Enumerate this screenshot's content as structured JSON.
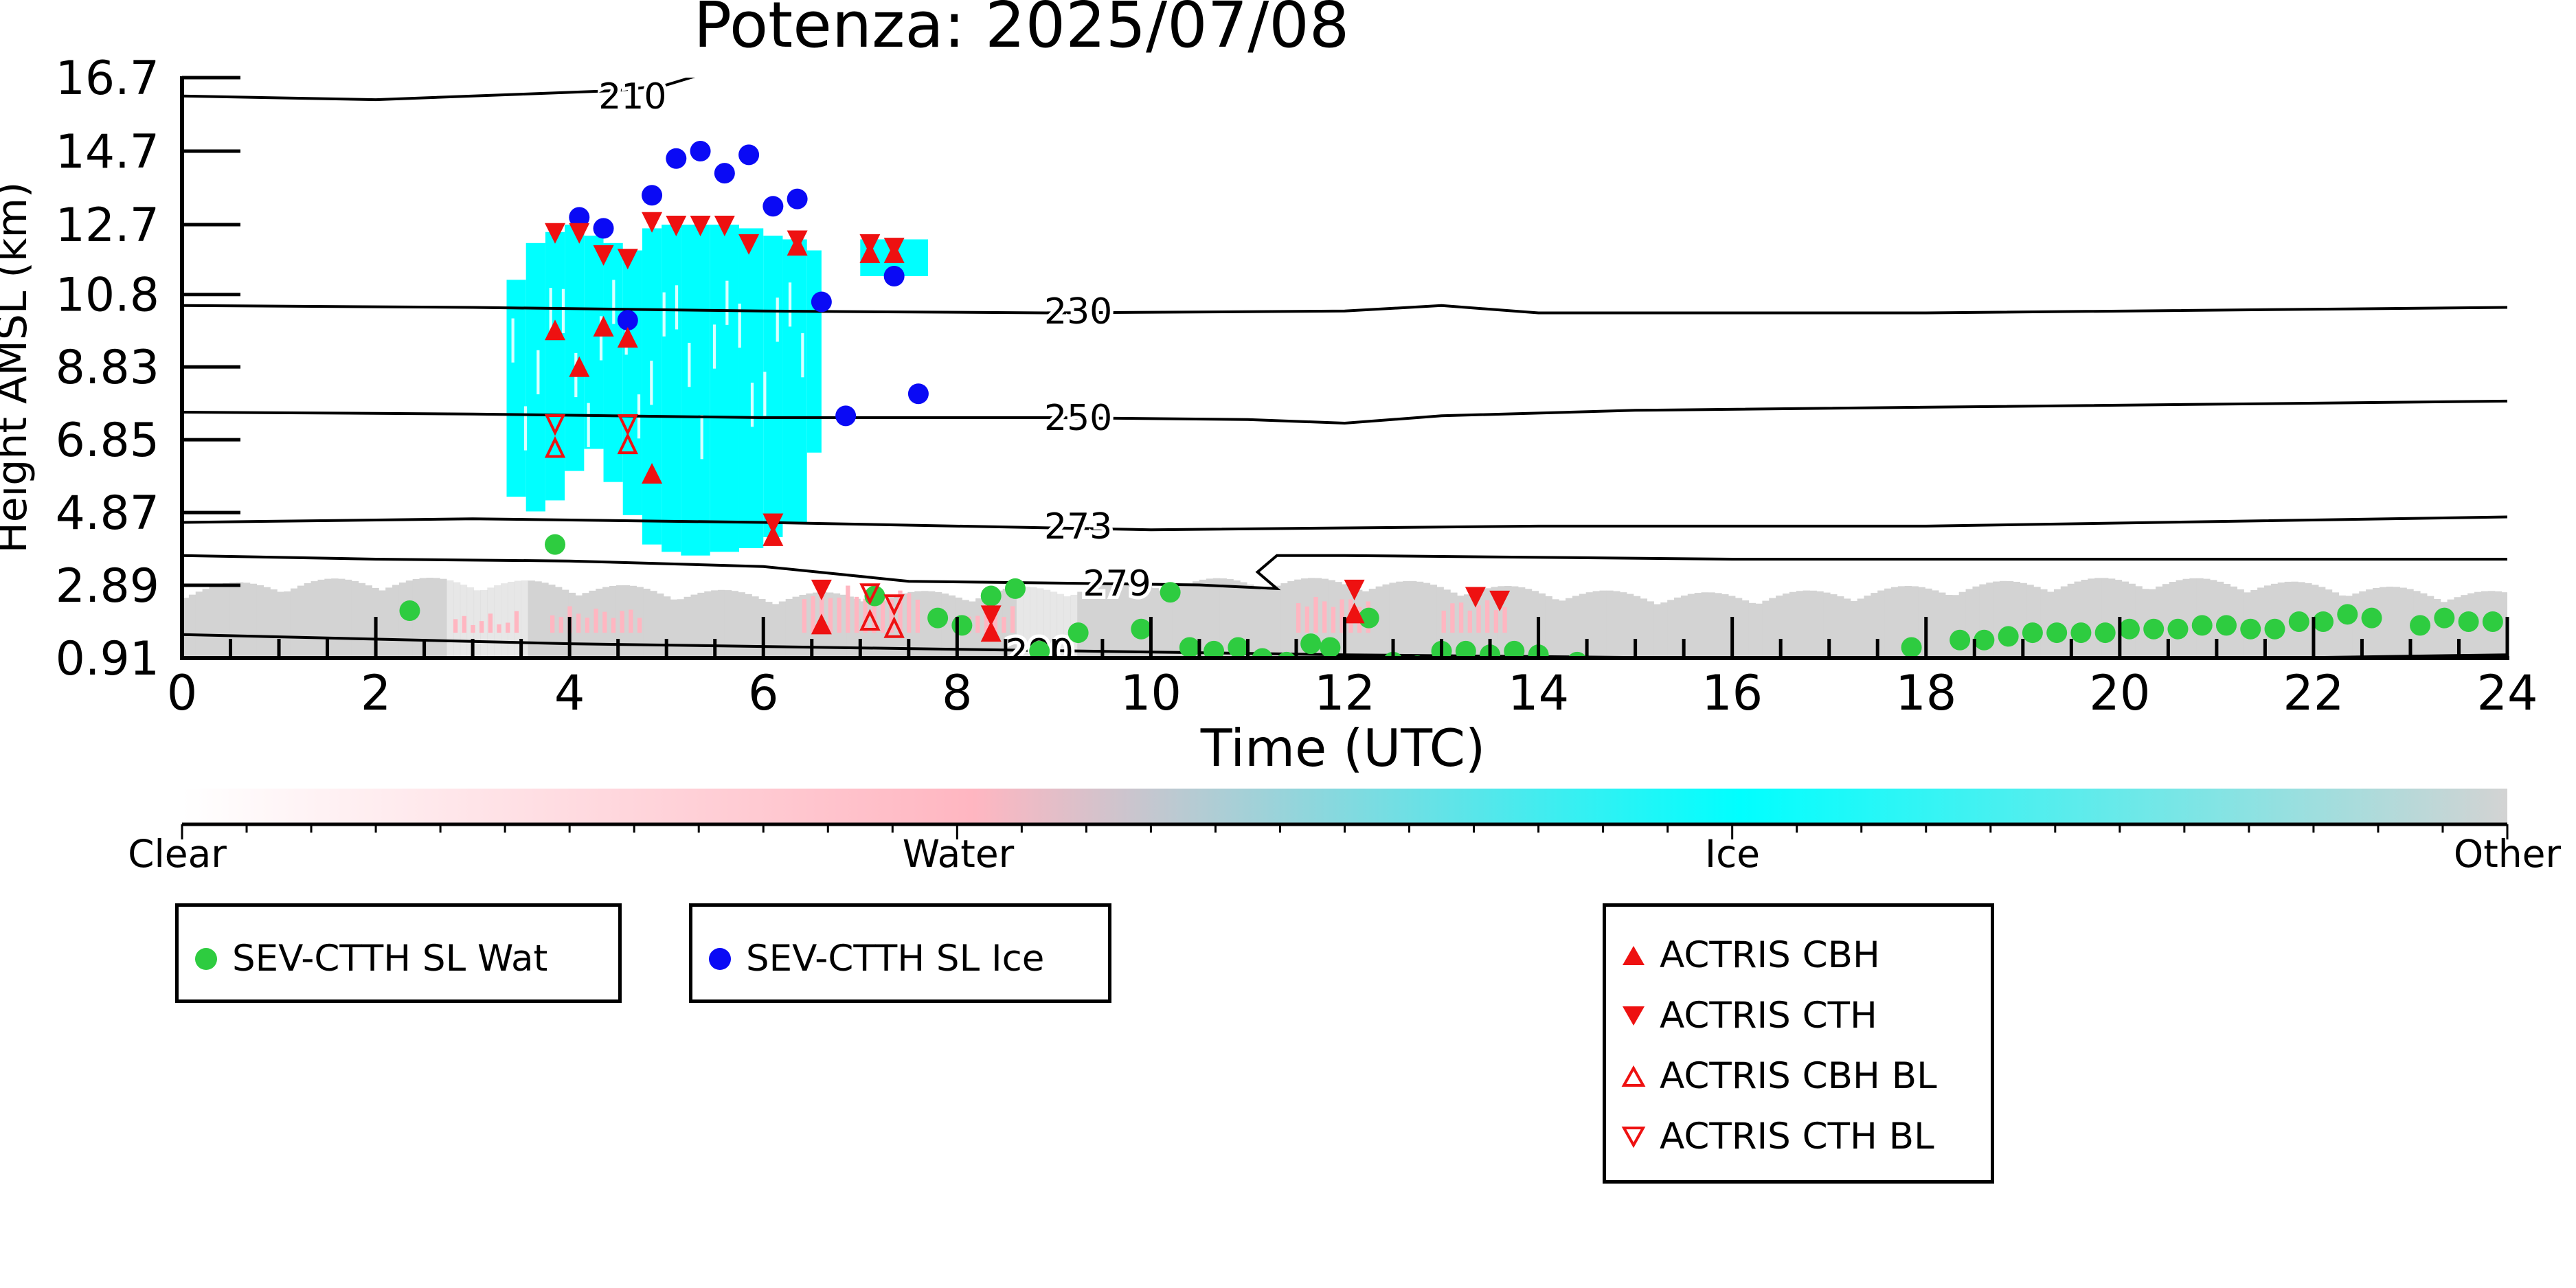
{
  "chart_data": {
    "type": "scatter",
    "title": "Potenza: 2025/07/08",
    "xlabel": "Time (UTC)",
    "ylabel": "Height AMSL (km)",
    "xlim": [
      0,
      24
    ],
    "ylim": [
      0.91,
      16.7
    ],
    "x_ticks": [
      "0",
      "2",
      "4",
      "6",
      "8",
      "10",
      "12",
      "14",
      "16",
      "18",
      "20",
      "22",
      "24"
    ],
    "y_ticks": [
      "0.91",
      "2.89",
      "4.87",
      "6.85",
      "8.83",
      "10.8",
      "12.7",
      "14.7",
      "16.7"
    ],
    "colorbar": {
      "labels": [
        "Clear",
        "Water",
        "Ice",
        "Other"
      ],
      "colors": [
        "#ffffff",
        "#ffb6c1",
        "#00ffff",
        "#d3d3d3"
      ]
    },
    "contours": [
      {
        "label": "210",
        "points": [
          [
            0,
            16.2
          ],
          [
            2,
            16.1
          ],
          [
            3.5,
            16.25
          ],
          [
            4.5,
            16.35
          ],
          [
            5,
            16.5
          ],
          [
            5.5,
            16.9
          ]
        ]
      },
      {
        "label": "230",
        "points": [
          [
            0,
            10.5
          ],
          [
            3,
            10.45
          ],
          [
            6,
            10.35
          ],
          [
            9,
            10.3
          ],
          [
            12,
            10.35
          ],
          [
            13,
            10.5
          ],
          [
            14,
            10.3
          ],
          [
            18,
            10.3
          ],
          [
            24,
            10.45
          ]
        ]
      },
      {
        "label": "250",
        "points": [
          [
            0,
            7.6
          ],
          [
            3,
            7.55
          ],
          [
            6,
            7.45
          ],
          [
            9,
            7.45
          ],
          [
            11,
            7.4
          ],
          [
            12,
            7.3
          ],
          [
            13,
            7.5
          ],
          [
            15,
            7.65
          ],
          [
            24,
            7.9
          ]
        ]
      },
      {
        "label": "273",
        "points": [
          [
            0,
            4.6
          ],
          [
            3,
            4.7
          ],
          [
            6,
            4.6
          ],
          [
            10,
            4.4
          ],
          [
            14,
            4.5
          ],
          [
            18,
            4.5
          ],
          [
            24,
            4.75
          ]
        ]
      },
      {
        "label": "279",
        "points": [
          [
            0,
            3.7
          ],
          [
            2,
            3.6
          ],
          [
            4,
            3.55
          ],
          [
            6,
            3.4
          ],
          [
            7.5,
            3.0
          ],
          [
            9,
            2.95
          ],
          [
            10.5,
            2.9
          ],
          [
            11.3,
            2.8
          ],
          [
            11.1,
            3.25
          ],
          [
            11.3,
            3.7
          ],
          [
            12,
            3.7
          ],
          [
            16,
            3.6
          ],
          [
            24,
            3.6
          ]
        ]
      },
      {
        "label": "290",
        "points": [
          [
            0,
            1.55
          ],
          [
            4,
            1.3
          ],
          [
            8,
            1.15
          ],
          [
            12,
            1.0
          ],
          [
            16,
            0.9
          ],
          [
            18,
            0.8
          ],
          [
            20,
            0.85
          ],
          [
            24,
            1.0
          ]
        ]
      }
    ],
    "series": [
      {
        "name": "SEV-CTTH SL Wat",
        "color": "#2ecc40",
        "marker": "circle",
        "x": [
          2.35,
          3.85,
          7.15,
          7.8,
          8.05,
          8.35,
          8.6,
          8.85,
          9.25,
          9.9,
          10.2,
          10.4,
          10.65,
          10.9,
          11.15,
          11.4,
          11.65,
          11.85,
          12.25,
          12.5,
          12.75,
          13.0,
          13.25,
          13.5,
          13.75,
          14.0,
          14.4,
          17.85,
          18.35,
          18.6,
          18.85,
          19.1,
          19.35,
          19.6,
          19.85,
          20.1,
          20.35,
          20.6,
          20.85,
          21.1,
          21.35,
          21.6,
          21.85,
          22.1,
          22.35,
          22.6,
          23.1,
          23.35,
          23.6,
          23.85
        ],
        "y": [
          2.2,
          4.0,
          2.6,
          2.0,
          1.8,
          2.6,
          2.8,
          1.1,
          1.6,
          1.7,
          2.7,
          1.2,
          1.1,
          1.2,
          0.9,
          0.8,
          1.3,
          1.2,
          2.0,
          0.8,
          0.7,
          1.1,
          1.1,
          1.0,
          1.1,
          1.0,
          0.8,
          1.2,
          1.4,
          1.4,
          1.5,
          1.6,
          1.6,
          1.6,
          1.6,
          1.7,
          1.7,
          1.7,
          1.8,
          1.8,
          1.7,
          1.7,
          1.9,
          1.9,
          2.1,
          2.0,
          1.8,
          2.0,
          1.9,
          1.9
        ]
      },
      {
        "name": "SEV-CTTH SL Ice",
        "color": "#0a0af5",
        "marker": "circle",
        "x": [
          4.1,
          4.35,
          4.6,
          4.85,
          5.1,
          5.35,
          5.6,
          5.85,
          6.1,
          6.35,
          6.6,
          6.85,
          7.35,
          7.6
        ],
        "y": [
          12.9,
          12.6,
          10.1,
          13.5,
          14.5,
          14.7,
          14.1,
          14.6,
          13.2,
          13.4,
          10.6,
          7.5,
          11.3,
          8.1
        ]
      },
      {
        "name": "ACTRIS CBH",
        "color": "#ee1111",
        "marker": "triangle-up",
        "x": [
          3.85,
          4.1,
          4.35,
          4.6,
          4.85,
          6.1,
          6.35,
          6.6,
          7.1,
          7.35,
          8.35,
          12.1
        ],
        "y": [
          9.8,
          8.8,
          9.9,
          9.6,
          5.9,
          4.2,
          12.1,
          1.8,
          11.9,
          11.9,
          1.6,
          2.1
        ]
      },
      {
        "name": "ACTRIS CTH",
        "color": "#ee1111",
        "marker": "triangle-down",
        "x": [
          3.85,
          4.1,
          4.35,
          4.6,
          4.85,
          5.1,
          5.35,
          5.6,
          5.85,
          6.1,
          6.35,
          6.6,
          7.1,
          7.35,
          8.35,
          12.1,
          13.35,
          13.6
        ],
        "y": [
          12.5,
          12.5,
          11.9,
          11.8,
          12.8,
          12.7,
          12.7,
          12.7,
          12.2,
          4.6,
          12.3,
          2.8,
          12.2,
          12.1,
          2.1,
          2.8,
          2.6,
          2.5
        ]
      },
      {
        "name": "ACTRIS CBH BL",
        "color": "#ee1111",
        "marker": "triangle-up-open",
        "x": [
          3.85,
          4.6,
          7.1,
          7.35
        ],
        "y": [
          6.6,
          6.7,
          1.9,
          1.7
        ]
      },
      {
        "name": "ACTRIS CTH BL",
        "color": "#ee1111",
        "marker": "triangle-down-open",
        "x": [
          3.85,
          4.6,
          7.1,
          7.35
        ],
        "y": [
          7.3,
          7.3,
          2.7,
          2.4
        ]
      }
    ]
  },
  "legends": {
    "satellite": {
      "water_label": "SEV-CTTH SL Wat",
      "ice_label": "SEV-CTTH SL Ice"
    },
    "actris": {
      "cbh_label": "ACTRIS CBH",
      "cth_label": "ACTRIS CTH",
      "cbh_bl_label": "ACTRIS CBH BL",
      "cth_bl_label": "ACTRIS CTH BL"
    }
  }
}
